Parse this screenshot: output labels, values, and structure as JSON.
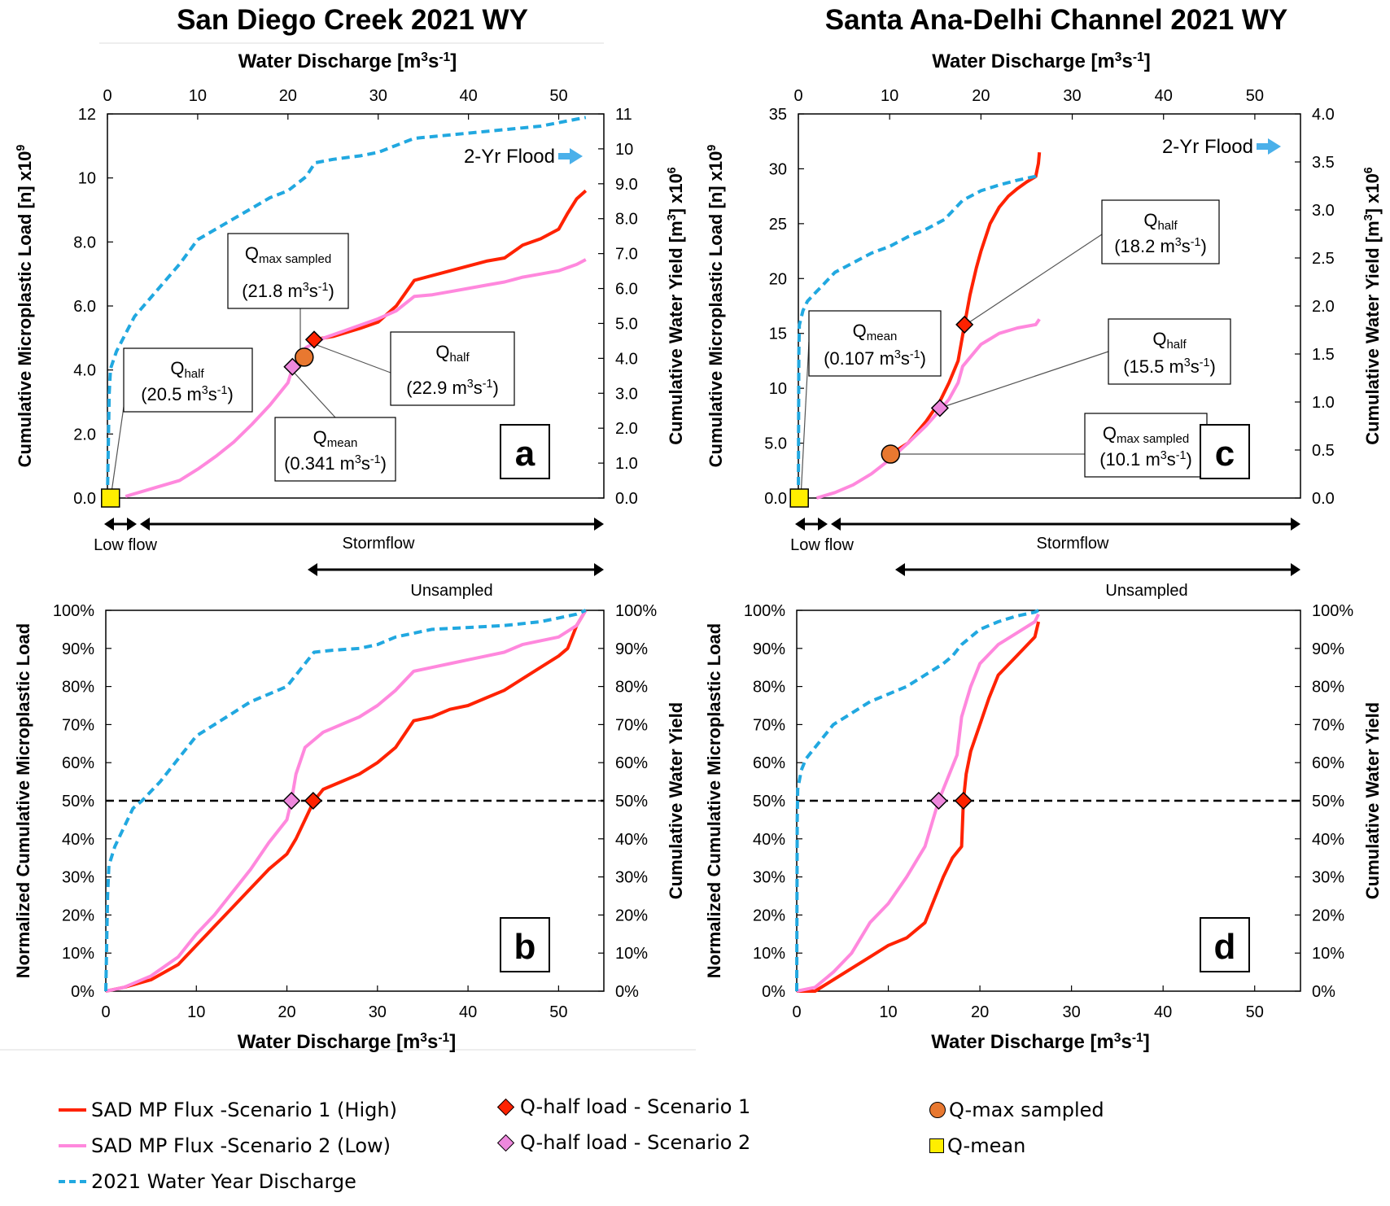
{
  "colors": {
    "scenario1": "#ff2200",
    "scenario2": "#ff88dd",
    "discharge": "#21a8e0",
    "qmax": "#e87830",
    "qmean": "#ffee00",
    "qhalf1": "#ff2200",
    "qhalf2": "#ee88dd"
  },
  "legend": {
    "s1": "SAD  MP Flux -Scenario 1 (High)",
    "s2": "SAD  MP Flux -Scenario 2 (Low)",
    "wy": "2021 Water Year Discharge",
    "qh1": "Q-half load - Scenario 1",
    "qh2": "Q-half load - Scenario 2",
    "qmax": "Q-max sampled",
    "qmean": "Q-mean"
  },
  "chart_data": [
    {
      "panel": "a",
      "type": "line",
      "title": "San Diego Creek 2021 WY",
      "xlabel": "Water Discharge [m³s⁻¹]",
      "ylabel": "Cumulative Microplastic Load [n] x10⁹",
      "y2label": "Cumulative Water Yield [m³] x10⁶",
      "xlim": [
        0,
        55
      ],
      "xticks": [
        "0",
        "10",
        "20",
        "30",
        "40",
        "50"
      ],
      "ylim": [
        0,
        12
      ],
      "yticks": [
        "0.0",
        "2.0",
        "4.0",
        "6.0",
        "8.0",
        "10",
        "12"
      ],
      "y2lim": [
        0,
        11
      ],
      "y2ticks": [
        "0.0",
        "1.0",
        "2.0",
        "3.0",
        "4.0",
        "5.0",
        "6.0",
        "7.0",
        "8.0",
        "9.0",
        "10",
        "11"
      ],
      "series": [
        {
          "name": "SAD  MP Flux -Scenario 1 (High)",
          "axis": "y",
          "style": "solid",
          "color": "#ff2200",
          "x": [
            22.9,
            25,
            28,
            30,
            32,
            34,
            36,
            38,
            40,
            42,
            44,
            46,
            48,
            50,
            51,
            52,
            53
          ],
          "y": [
            4.95,
            5.05,
            5.3,
            5.5,
            6.0,
            6.8,
            6.95,
            7.1,
            7.25,
            7.4,
            7.5,
            7.9,
            8.1,
            8.4,
            8.9,
            9.35,
            9.6
          ]
        },
        {
          "name": "SAD  MP Flux -Scenario 2 (Low)",
          "axis": "y",
          "style": "solid",
          "color": "#ff88dd",
          "x": [
            2,
            5,
            8,
            10,
            12,
            14,
            16,
            18,
            20,
            20.5,
            22,
            24,
            26,
            28,
            30,
            32,
            34,
            36,
            38,
            40,
            42,
            44,
            46,
            48,
            50,
            52,
            53
          ],
          "y": [
            0.05,
            0.3,
            0.55,
            0.9,
            1.3,
            1.75,
            2.3,
            2.9,
            3.6,
            4.05,
            4.7,
            5.0,
            5.2,
            5.4,
            5.6,
            5.85,
            6.3,
            6.35,
            6.45,
            6.55,
            6.65,
            6.75,
            6.9,
            7.0,
            7.1,
            7.3,
            7.45
          ]
        },
        {
          "name": "2021 Water Year Discharge",
          "axis": "y2",
          "style": "dashed",
          "color": "#21a8e0",
          "x": [
            0,
            0.2,
            0.341,
            1,
            2,
            3,
            4,
            6,
            8,
            10,
            12,
            14,
            16,
            18,
            20,
            22,
            23,
            25,
            28,
            30,
            32,
            34,
            36,
            40,
            44,
            48,
            50,
            52,
            53
          ],
          "y": [
            0,
            3.0,
            3.7,
            4.2,
            4.7,
            5.2,
            5.5,
            6.1,
            6.7,
            7.4,
            7.7,
            8.0,
            8.3,
            8.6,
            8.8,
            9.2,
            9.6,
            9.7,
            9.8,
            9.9,
            10.1,
            10.3,
            10.35,
            10.45,
            10.55,
            10.65,
            10.75,
            10.85,
            10.9
          ]
        }
      ],
      "markers": [
        {
          "type": "square",
          "x": 0.341,
          "y": 0,
          "color": "#ffee00"
        },
        {
          "type": "diamond",
          "x": 20.5,
          "y": 4.1,
          "color": "#ee88dd"
        },
        {
          "type": "circle",
          "x": 21.8,
          "y": 4.4,
          "color": "#e87830"
        },
        {
          "type": "diamond",
          "x": 22.9,
          "y": 4.95,
          "color": "#ff2200"
        }
      ],
      "annotations": [
        {
          "label": "Q",
          "sub": "mean",
          "value": "(0.341 m³s⁻¹)"
        },
        {
          "label": "Q",
          "sub": "max sampled",
          "value": "(21.8 m³s⁻¹)"
        },
        {
          "label": "Q",
          "sub": "half",
          "value": "(22.9 m³s⁻¹)"
        },
        {
          "label": "Q",
          "sub": "half",
          "value": "(20.5 m³s⁻¹)"
        }
      ],
      "flood_label": "2-Yr Flood",
      "panel_label": "a",
      "ranges": {
        "low": "Low flow",
        "storm": "Stormflow",
        "unsampled": "Unsampled"
      }
    },
    {
      "panel": "b",
      "type": "line",
      "xlabel": "Water Discharge [m³s⁻¹]",
      "ylabel": "Normalized Cumulative Microplastic Load",
      "y2label": "Cumulative Water Yield",
      "xlim": [
        0,
        55
      ],
      "xticks": [
        "0",
        "10",
        "20",
        "30",
        "40",
        "50"
      ],
      "ylim": [
        0,
        100
      ],
      "yticks": [
        "0%",
        "10%",
        "20%",
        "30%",
        "40%",
        "50%",
        "60%",
        "70%",
        "80%",
        "90%",
        "100%"
      ],
      "y2ticks": [
        "0%",
        "10%",
        "20%",
        "30%",
        "40%",
        "50%",
        "60%",
        "70%",
        "80%",
        "90%",
        "100%"
      ],
      "series": [
        {
          "name": "SAD  MP Flux -Scenario 1 (High)",
          "style": "solid",
          "color": "#ff2200",
          "x": [
            0,
            2,
            5,
            8,
            10,
            12,
            14,
            16,
            18,
            20,
            21,
            22,
            23,
            24,
            26,
            28,
            30,
            32,
            34,
            36,
            38,
            40,
            42,
            44,
            46,
            48,
            50,
            51,
            52,
            53
          ],
          "y": [
            0,
            1,
            3,
            7,
            12,
            17,
            22,
            27,
            32,
            36,
            40,
            45,
            50,
            53,
            55,
            57,
            60,
            64,
            71,
            72,
            74,
            75,
            77,
            79,
            82,
            85,
            88,
            90,
            96,
            100
          ]
        },
        {
          "name": "SAD  MP Flux -Scenario 2 (Low)",
          "style": "solid",
          "color": "#ff88dd",
          "x": [
            0,
            2,
            5,
            8,
            10,
            12,
            14,
            16,
            18,
            20,
            20.5,
            21,
            22,
            24,
            26,
            28,
            30,
            32,
            34,
            36,
            38,
            40,
            42,
            44,
            46,
            48,
            50,
            52,
            53
          ],
          "y": [
            0,
            1,
            4,
            9,
            15,
            20,
            26,
            32,
            39,
            45,
            50,
            57,
            64,
            68,
            70,
            72,
            75,
            79,
            84,
            85,
            86,
            87,
            88,
            89,
            91,
            92,
            93,
            96,
            100
          ]
        },
        {
          "name": "2021 Water Year Discharge",
          "style": "dashed",
          "color": "#21a8e0",
          "x": [
            0,
            0.2,
            0.341,
            1,
            2,
            3,
            4,
            6,
            8,
            10,
            12,
            14,
            16,
            18,
            20,
            22,
            23,
            25,
            28,
            30,
            32,
            34,
            36,
            40,
            44,
            48,
            50,
            52,
            53
          ],
          "y": [
            0,
            25,
            33,
            38,
            43,
            48,
            50,
            55,
            61,
            67,
            70,
            73,
            76,
            78,
            80,
            86,
            89,
            89.5,
            90,
            91,
            93,
            94,
            95,
            95.5,
            96,
            97,
            98,
            99,
            100
          ]
        }
      ],
      "reference_line": {
        "y": 50,
        "style": "dashed"
      },
      "markers": [
        {
          "type": "diamond",
          "x": 20.5,
          "y": 50,
          "color": "#ee88dd"
        },
        {
          "type": "diamond",
          "x": 22.9,
          "y": 50,
          "color": "#ff2200"
        }
      ],
      "panel_label": "b"
    },
    {
      "panel": "c",
      "type": "line",
      "title": "Santa Ana-Delhi Channel 2021 WY",
      "xlabel": "Water Discharge [m³s⁻¹]",
      "ylabel": "Cumulative Microplastic Load [n] x10⁹",
      "y2label": "Cumulative Water Yield [m³] x10⁶",
      "xlim": [
        0,
        55
      ],
      "xticks": [
        "0",
        "10",
        "20",
        "30",
        "40",
        "50"
      ],
      "ylim": [
        0,
        35
      ],
      "yticks": [
        "0.0",
        "5.0",
        "10",
        "15",
        "20",
        "25",
        "30",
        "35"
      ],
      "y2lim": [
        0,
        4
      ],
      "y2ticks": [
        "0.0",
        "0.5",
        "1.0",
        "1.5",
        "2.0",
        "2.5",
        "3.0",
        "3.5",
        "4.0"
      ],
      "series": [
        {
          "name": "SAD  MP Flux -Scenario 1 (High)",
          "axis": "y",
          "style": "solid",
          "color": "#ff2200",
          "x": [
            10.1,
            12,
            14,
            15.5,
            16.5,
            17.5,
            18.2,
            18.8,
            19.5,
            20,
            21,
            22,
            23,
            24,
            25,
            26,
            26.3,
            26.4
          ],
          "y": [
            4.0,
            5.0,
            7.0,
            8.8,
            10.5,
            12.5,
            15.8,
            18.5,
            21,
            22.5,
            25,
            26.5,
            27.5,
            28.2,
            28.8,
            29.3,
            30.5,
            31.5
          ]
        },
        {
          "name": "SAD  MP Flux -Scenario 2 (Low)",
          "axis": "y",
          "style": "solid",
          "color": "#ff88dd",
          "x": [
            2,
            4,
            6,
            8,
            10,
            12,
            14,
            15.5,
            16.5,
            17.5,
            18,
            19,
            20,
            21,
            22,
            24,
            26,
            26.4
          ],
          "y": [
            0,
            0.5,
            1.2,
            2.2,
            3.5,
            5.0,
            6.6,
            8.0,
            9.0,
            10.5,
            12.0,
            13.0,
            14.0,
            14.5,
            15.0,
            15.5,
            15.8,
            16.3
          ]
        },
        {
          "name": "2021 Water Year Discharge",
          "axis": "y2",
          "style": "dashed",
          "color": "#21a8e0",
          "x": [
            0,
            0.05,
            0.107,
            0.5,
            1,
            2,
            3,
            4,
            6,
            8,
            10,
            12,
            14,
            16,
            17,
            18,
            20,
            22,
            24,
            26,
            26.4
          ],
          "y": [
            0,
            1.5,
            1.8,
            1.95,
            2.05,
            2.15,
            2.25,
            2.35,
            2.45,
            2.55,
            2.62,
            2.72,
            2.8,
            2.9,
            3.0,
            3.1,
            3.2,
            3.26,
            3.31,
            3.35,
            3.38
          ]
        }
      ],
      "markers": [
        {
          "type": "square",
          "x": 0.107,
          "y": 0,
          "color": "#ffee00"
        },
        {
          "type": "circle",
          "x": 10.1,
          "y": 4.0,
          "color": "#e87830"
        },
        {
          "type": "diamond",
          "x": 15.5,
          "y": 8.2,
          "color": "#ee88dd"
        },
        {
          "type": "diamond",
          "x": 18.2,
          "y": 15.8,
          "color": "#ff2200"
        }
      ],
      "annotations": [
        {
          "label": "Q",
          "sub": "half",
          "value": "(18.2 m³s⁻¹)"
        },
        {
          "label": "Q",
          "sub": "mean",
          "value": "(0.107 m³s⁻¹)"
        },
        {
          "label": "Q",
          "sub": "half",
          "value": "(15.5 m³s⁻¹)"
        },
        {
          "label": "Q",
          "sub": "max sampled",
          "value": "(10.1 m³s⁻¹)"
        }
      ],
      "flood_label": "2-Yr Flood",
      "panel_label": "c",
      "ranges": {
        "low": "Low flow",
        "storm": "Stormflow",
        "unsampled": "Unsampled"
      }
    },
    {
      "panel": "d",
      "type": "line",
      "xlabel": "Water Discharge [m³s⁻¹]",
      "ylabel": "Normalized Cumulative Microplastic Load",
      "y2label": "Cumulative Water Yield",
      "xlim": [
        0,
        55
      ],
      "xticks": [
        "0",
        "10",
        "20",
        "30",
        "40",
        "50"
      ],
      "ylim": [
        0,
        100
      ],
      "yticks": [
        "0%",
        "10%",
        "20%",
        "30%",
        "40%",
        "50%",
        "60%",
        "70%",
        "80%",
        "90%",
        "100%"
      ],
      "y2ticks": [
        "0%",
        "10%",
        "20%",
        "30%",
        "40%",
        "50%",
        "60%",
        "70%",
        "80%",
        "90%",
        "100%"
      ],
      "series": [
        {
          "name": "SAD  MP Flux -Scenario 1 (High)",
          "style": "solid",
          "color": "#ff2200",
          "x": [
            0,
            2,
            4,
            6,
            8,
            10,
            12,
            14,
            15,
            16,
            17,
            18,
            18.2,
            18.5,
            19,
            20,
            21,
            22,
            24,
            26,
            26.4
          ],
          "y": [
            0,
            0,
            3,
            6,
            9,
            12,
            14,
            18,
            24,
            30,
            35,
            38,
            50,
            57,
            63,
            70,
            77,
            83,
            88,
            93,
            97
          ]
        },
        {
          "name": "SAD  MP Flux -Scenario 2 (Low)",
          "style": "solid",
          "color": "#ff88dd",
          "x": [
            0,
            2,
            4,
            6,
            8,
            10,
            12,
            14,
            15.5,
            16.5,
            17.5,
            18,
            19,
            20,
            22,
            24,
            26,
            26.4
          ],
          "y": [
            0,
            1,
            5,
            10,
            18,
            23,
            30,
            38,
            50,
            56,
            62,
            72,
            80,
            86,
            91,
            94,
            97,
            99
          ]
        },
        {
          "name": "2021 Water Year Discharge",
          "style": "dashed",
          "color": "#21a8e0",
          "x": [
            0,
            0.05,
            0.107,
            0.5,
            1,
            2,
            3,
            4,
            6,
            8,
            10,
            12,
            14,
            16,
            17,
            18,
            20,
            22,
            24,
            26,
            26.4
          ],
          "y": [
            0,
            45,
            53,
            58,
            61,
            64,
            67,
            70,
            73,
            76,
            78,
            80,
            83,
            86,
            88,
            91,
            95,
            97,
            98.5,
            99.5,
            100
          ]
        }
      ],
      "reference_line": {
        "y": 50,
        "style": "dashed"
      },
      "markers": [
        {
          "type": "diamond",
          "x": 15.5,
          "y": 50,
          "color": "#ee88dd"
        },
        {
          "type": "diamond",
          "x": 18.2,
          "y": 50,
          "color": "#ff2200"
        }
      ],
      "panel_label": "d"
    }
  ]
}
